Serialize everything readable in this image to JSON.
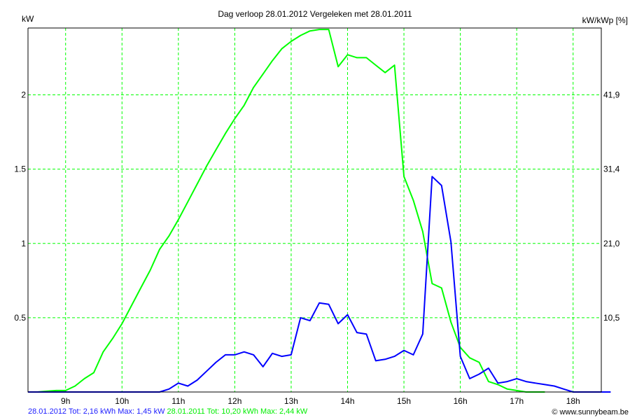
{
  "chart_data": {
    "type": "line",
    "title": "Dag  verloop 28.01.2012   Vergeleken met 28.01.2011",
    "ylabel": "kW",
    "ylabel_right": "kW/kWp [%]",
    "xlim": [
      8.333,
      18.5
    ],
    "ylim": [
      0,
      2.45
    ],
    "grid": true,
    "x_ticks": [
      {
        "v": 9,
        "label": "9h"
      },
      {
        "v": 10,
        "label": "10h"
      },
      {
        "v": 11,
        "label": "11h"
      },
      {
        "v": 12,
        "label": "12h"
      },
      {
        "v": 13,
        "label": "13h"
      },
      {
        "v": 14,
        "label": "14h"
      },
      {
        "v": 15,
        "label": "15h"
      },
      {
        "v": 16,
        "label": "16h"
      },
      {
        "v": 17,
        "label": "17h"
      },
      {
        "v": 18,
        "label": "18h"
      }
    ],
    "y_ticks": [
      {
        "v": 0.5,
        "label": "0.5"
      },
      {
        "v": 1,
        "label": "1"
      },
      {
        "v": 1.5,
        "label": "1.5"
      },
      {
        "v": 2,
        "label": "2"
      }
    ],
    "y_ticks_right": [
      {
        "v": 0.5,
        "label": "10,5"
      },
      {
        "v": 1,
        "label": "21,0"
      },
      {
        "v": 1.5,
        "label": "31,4"
      },
      {
        "v": 2,
        "label": "41,9"
      }
    ],
    "x_start_hour": 8.3333,
    "step_minutes": 10,
    "series": [
      {
        "name": "28.01.2011",
        "color": "#00ff00",
        "values": [
          0,
          0,
          0.005,
          0.01,
          0.01,
          0.04,
          0.09,
          0.13,
          0.27,
          0.36,
          0.46,
          0.58,
          0.7,
          0.82,
          0.96,
          1.05,
          1.16,
          1.28,
          1.4,
          1.52,
          1.63,
          1.74,
          1.84,
          1.93,
          2.05,
          2.14,
          2.23,
          2.31,
          2.36,
          2.4,
          2.43,
          2.44,
          2.44,
          2.19,
          2.27,
          2.25,
          2.25,
          2.2,
          2.15,
          2.2,
          1.45,
          1.29,
          1.08,
          0.73,
          0.7,
          0.47,
          0.3,
          0.23,
          0.2,
          0.07,
          0.05,
          0.02,
          0.01,
          0,
          0,
          0
        ]
      },
      {
        "name": "28.01.2012",
        "color": "#0000ff",
        "values": [
          0,
          0,
          0,
          0,
          0,
          0,
          0,
          0,
          0,
          0,
          0,
          0,
          0,
          0,
          0,
          0.02,
          0.06,
          0.04,
          0.08,
          0.14,
          0.2,
          0.25,
          0.25,
          0.27,
          0.25,
          0.17,
          0.26,
          0.24,
          0.25,
          0.5,
          0.48,
          0.6,
          0.59,
          0.46,
          0.52,
          0.4,
          0.39,
          0.21,
          0.22,
          0.24,
          0.28,
          0.25,
          0.39,
          1.45,
          1.39,
          1.01,
          0.24,
          0.09,
          0.12,
          0.16,
          0.06,
          0.07,
          0.09,
          0.07,
          0.06,
          0.05,
          0.04,
          0.02,
          0,
          0,
          0,
          0,
          0
        ]
      }
    ]
  },
  "legend": {
    "s2012": "28.01.2012 Tot: 2,16 kWh Max: 1,45 kW",
    "s2011": "28.01.2011 Tot: 10,20 kWh Max: 2,44 kW"
  },
  "credit": "© www.sunnybeam.be",
  "colors": {
    "blue": "#0000ff",
    "green": "#00ff00",
    "grid": "#00ff00"
  }
}
